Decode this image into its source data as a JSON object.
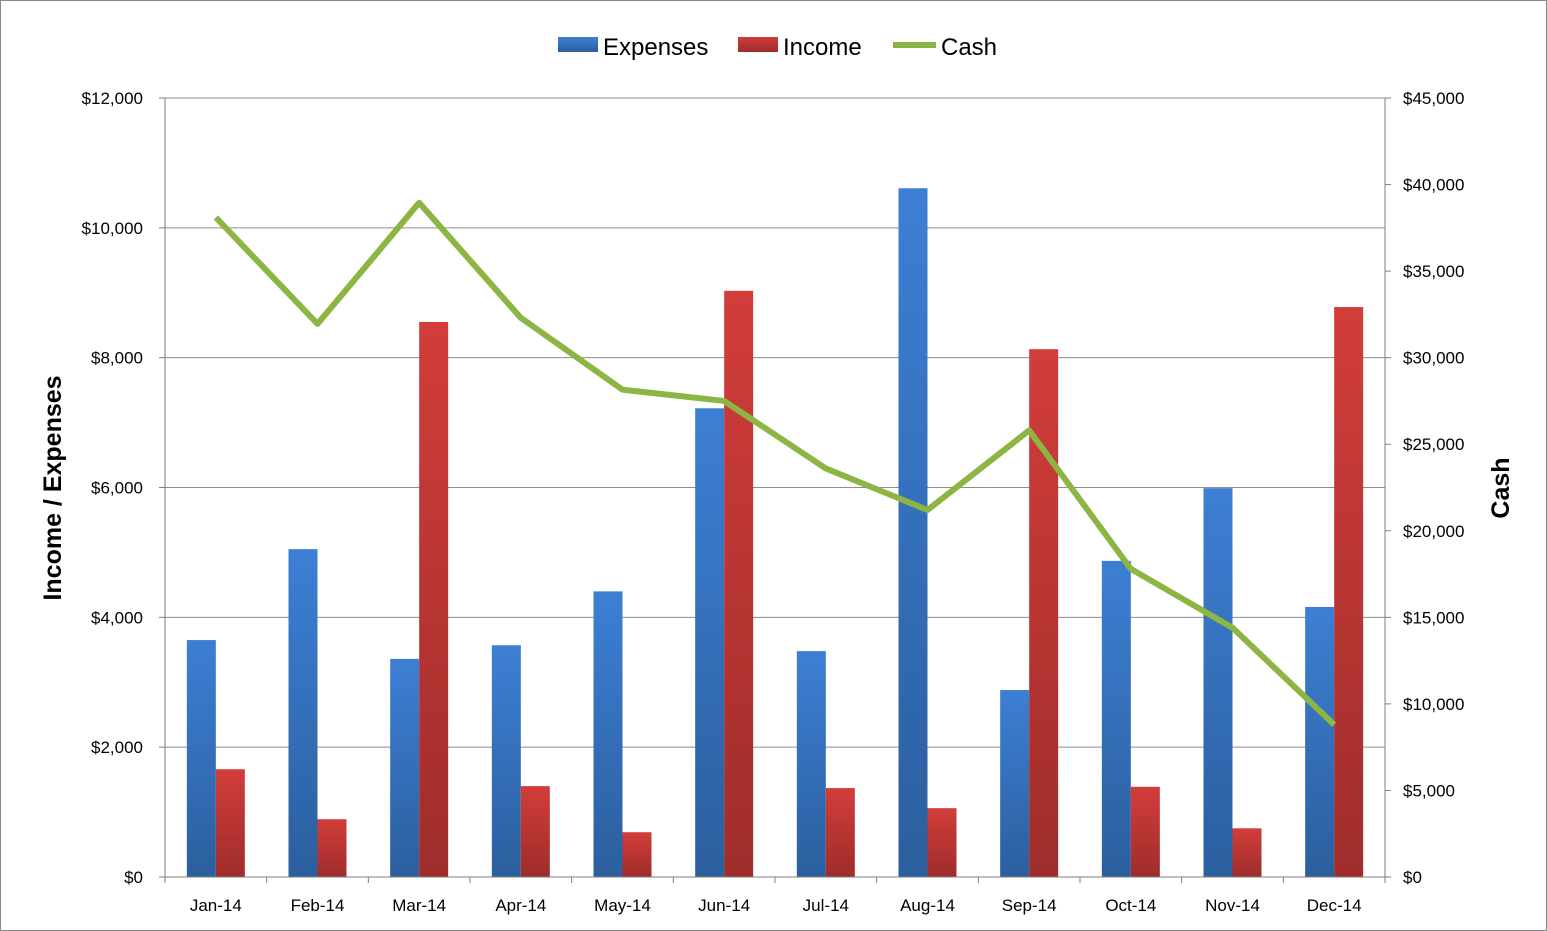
{
  "chart_data": {
    "type": "bar",
    "categories": [
      "Jan-14",
      "Feb-14",
      "Mar-14",
      "Apr-14",
      "May-14",
      "Jun-14",
      "Jul-14",
      "Aug-14",
      "Sep-14",
      "Oct-14",
      "Nov-14",
      "Dec-14"
    ],
    "series": [
      {
        "name": "Expenses",
        "type": "bar",
        "axis": "left",
        "color": "#3a78c9",
        "values": [
          3650,
          5050,
          3360,
          3570,
          4400,
          7220,
          3480,
          10610,
          2880,
          4870,
          5990,
          4160
        ]
      },
      {
        "name": "Income",
        "type": "bar",
        "axis": "left",
        "color": "#c93a38",
        "values": [
          1660,
          890,
          8550,
          1400,
          690,
          9030,
          1370,
          1060,
          8130,
          1390,
          750,
          8780
        ]
      },
      {
        "name": "Cash",
        "type": "line",
        "axis": "right",
        "color": "#8db544",
        "values": [
          38100,
          31950,
          38950,
          32300,
          28150,
          27500,
          23600,
          21200,
          25800,
          17800,
          14400,
          8800
        ]
      }
    ],
    "ylabel": "Income / Expenses",
    "y2label": "Cash",
    "ylim": [
      0,
      12000
    ],
    "y2lim": [
      0,
      45000
    ],
    "yticks": [
      "$0",
      "$2,000",
      "$4,000",
      "$6,000",
      "$8,000",
      "$10,000",
      "$12,000"
    ],
    "y2ticks": [
      "$0",
      "$5,000",
      "$10,000",
      "$15,000",
      "$20,000",
      "$25,000",
      "$30,000",
      "$35,000",
      "$40,000",
      "$45,000"
    ],
    "grid": true,
    "legend": "top"
  }
}
